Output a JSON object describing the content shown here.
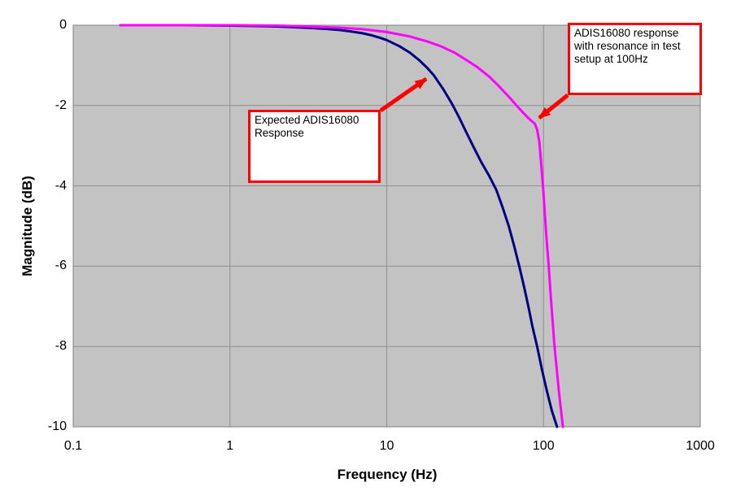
{
  "chart_data": {
    "type": "line",
    "title": "",
    "xlabel": "Frequency (Hz)",
    "ylabel": "Magnitude (dB)",
    "x_scale": "log",
    "xlim": [
      0.1,
      1000
    ],
    "ylim": [
      -10,
      0
    ],
    "x_ticks": [
      "0.1",
      "1",
      "10",
      "100",
      "1000"
    ],
    "y_ticks": [
      "0",
      "-2",
      "-4",
      "-6",
      "-8",
      "-10"
    ],
    "grid": true,
    "legend": "none",
    "plot_bg": "#c3c3c3",
    "grid_color": "#8f8f8f",
    "border_color": "#808080",
    "series": [
      {
        "name": "Expected ADIS16080 Response",
        "color": "#000080",
        "points": [
          [
            0.2,
            0
          ],
          [
            0.5,
            0
          ],
          [
            1,
            -0.01
          ],
          [
            1.5,
            -0.02
          ],
          [
            2,
            -0.03
          ],
          [
            3,
            -0.06
          ],
          [
            4,
            -0.09
          ],
          [
            5,
            -0.12
          ],
          [
            6,
            -0.16
          ],
          [
            7,
            -0.2
          ],
          [
            8,
            -0.25
          ],
          [
            9,
            -0.31
          ],
          [
            10,
            -0.37
          ],
          [
            12,
            -0.52
          ],
          [
            14,
            -0.68
          ],
          [
            16,
            -0.86
          ],
          [
            18,
            -1.05
          ],
          [
            20,
            -1.25
          ],
          [
            23,
            -1.6
          ],
          [
            26,
            -1.95
          ],
          [
            29,
            -2.3
          ],
          [
            32,
            -2.65
          ],
          [
            36,
            -3.05
          ],
          [
            40,
            -3.4
          ],
          [
            45,
            -3.75
          ],
          [
            50,
            -4.1
          ],
          [
            55,
            -4.55
          ],
          [
            60,
            -5.0
          ],
          [
            65,
            -5.5
          ],
          [
            70,
            -6.0
          ],
          [
            75,
            -6.5
          ],
          [
            80,
            -7.0
          ],
          [
            85,
            -7.5
          ],
          [
            91,
            -8.0
          ],
          [
            98,
            -8.6
          ],
          [
            105,
            -9.1
          ],
          [
            113,
            -9.6
          ],
          [
            122,
            -10.0
          ]
        ]
      },
      {
        "name": "ADIS16080 response with resonance in test setup at 100Hz",
        "color": "#ff00ff",
        "points": [
          [
            0.2,
            0
          ],
          [
            0.5,
            0
          ],
          [
            1,
            0
          ],
          [
            2,
            -0.01
          ],
          [
            3,
            -0.03
          ],
          [
            5,
            -0.06
          ],
          [
            7,
            -0.1
          ],
          [
            10,
            -0.17
          ],
          [
            14,
            -0.28
          ],
          [
            18,
            -0.4
          ],
          [
            22,
            -0.52
          ],
          [
            27,
            -0.68
          ],
          [
            32,
            -0.86
          ],
          [
            38,
            -1.05
          ],
          [
            45,
            -1.28
          ],
          [
            52,
            -1.52
          ],
          [
            60,
            -1.78
          ],
          [
            68,
            -2.02
          ],
          [
            75,
            -2.2
          ],
          [
            82,
            -2.35
          ],
          [
            88,
            -2.45
          ],
          [
            91,
            -2.6
          ],
          [
            94,
            -2.9
          ],
          [
            96,
            -3.3
          ],
          [
            98,
            -3.75
          ],
          [
            100,
            -4.2
          ],
          [
            102,
            -4.7
          ],
          [
            105,
            -5.4
          ],
          [
            108,
            -6.0
          ],
          [
            111,
            -6.7
          ],
          [
            114,
            -7.3
          ],
          [
            117,
            -7.9
          ],
          [
            121,
            -8.5
          ],
          [
            126,
            -9.2
          ],
          [
            133,
            -10.0
          ]
        ]
      }
    ]
  },
  "annotations": {
    "border_color": "#ff0000",
    "arrow_color": "#ff0000",
    "boxes": [
      {
        "text": "Expected ADIS16080 Response"
      },
      {
        "text": "ADIS16080 response with resonance in test setup at 100Hz"
      }
    ]
  }
}
